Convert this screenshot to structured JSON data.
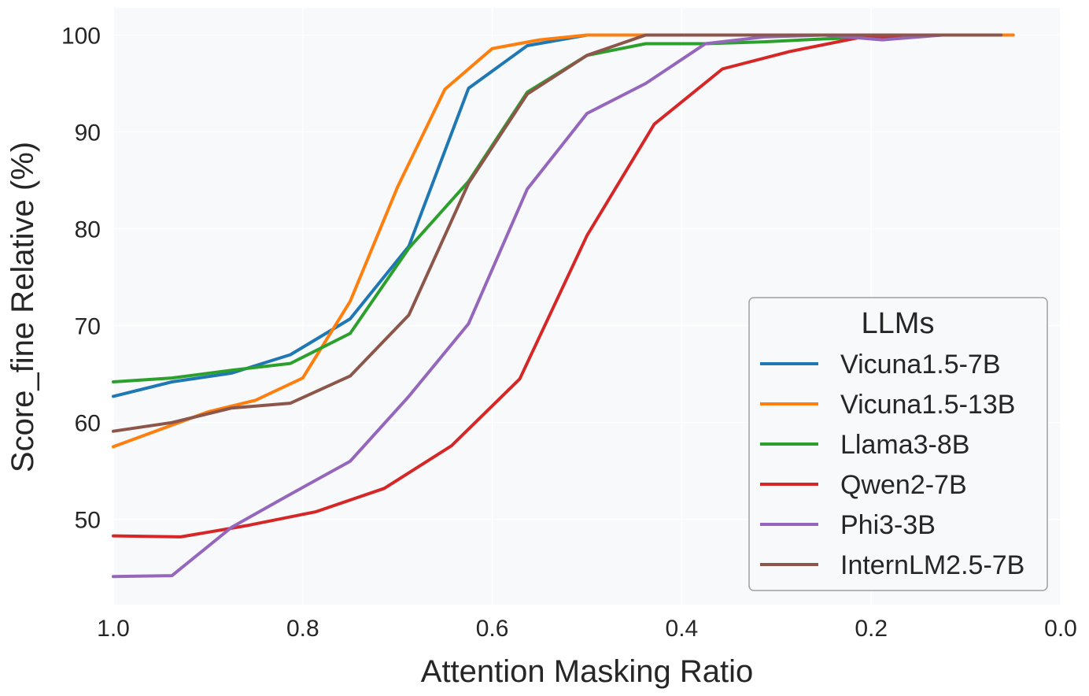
{
  "chart_data": {
    "type": "line",
    "xlabel": "Attention Masking Ratio",
    "ylabel": "Score_fine Relative (%)",
    "xlim": [
      1.0,
      0.0
    ],
    "ylim": [
      41.2,
      102.8
    ],
    "x_ticks": [
      1.0,
      0.8,
      0.6,
      0.4,
      0.2,
      0.0
    ],
    "x_tick_labels": [
      "1.0",
      "0.8",
      "0.6",
      "0.4",
      "0.2",
      "0.0"
    ],
    "y_ticks": [
      50,
      60,
      70,
      80,
      90,
      100
    ],
    "y_tick_labels": [
      "50",
      "60",
      "70",
      "80",
      "90",
      "100"
    ],
    "grid": true,
    "legend": {
      "title": "LLMs",
      "position": "lower-right"
    },
    "series": [
      {
        "name": "Vicuna1.5-7B",
        "color": "#1f77b4",
        "x": [
          1.0,
          0.938,
          0.875,
          0.813,
          0.75,
          0.688,
          0.625,
          0.563,
          0.5,
          0.438,
          0.375,
          0.313,
          0.25,
          0.188,
          0.125,
          0.063
        ],
        "y": [
          62.7,
          64.2,
          65.1,
          67.0,
          70.7,
          78.2,
          94.5,
          98.9,
          100.0,
          100.0,
          100.0,
          100.0,
          100.0,
          100.0,
          100.0,
          100.0
        ]
      },
      {
        "name": "Vicuna1.5-13B",
        "color": "#ff7f0e",
        "x": [
          1.0,
          0.95,
          0.9,
          0.85,
          0.8,
          0.75,
          0.7,
          0.65,
          0.6,
          0.55,
          0.5,
          0.45,
          0.4,
          0.35,
          0.3,
          0.25,
          0.2,
          0.15,
          0.1,
          0.05
        ],
        "y": [
          57.5,
          59.3,
          61.1,
          62.3,
          64.6,
          72.5,
          84.3,
          94.4,
          98.6,
          99.5,
          100.0,
          100.0,
          100.0,
          100.0,
          100.0,
          100.0,
          100.0,
          100.0,
          100.0,
          100.0
        ]
      },
      {
        "name": "Llama3-8B",
        "color": "#2ca02c",
        "x": [
          1.0,
          0.938,
          0.875,
          0.813,
          0.75,
          0.688,
          0.625,
          0.563,
          0.5,
          0.438,
          0.375,
          0.313,
          0.25,
          0.188,
          0.125,
          0.063
        ],
        "y": [
          64.2,
          64.6,
          65.4,
          66.1,
          69.2,
          78.0,
          84.9,
          94.1,
          97.9,
          99.1,
          99.1,
          99.3,
          99.6,
          99.8,
          100.0,
          100.0
        ]
      },
      {
        "name": "Qwen2-7B",
        "color": "#d62728",
        "x": [
          1.0,
          0.929,
          0.857,
          0.786,
          0.714,
          0.643,
          0.571,
          0.5,
          0.429,
          0.357,
          0.286,
          0.214,
          0.143,
          0.071
        ],
        "y": [
          48.3,
          48.2,
          49.4,
          50.8,
          53.2,
          57.6,
          64.5,
          79.3,
          90.8,
          96.5,
          98.3,
          99.7,
          100.0,
          100.0
        ]
      },
      {
        "name": "Phi3-3B",
        "color": "#9467bd",
        "x": [
          1.0,
          0.938,
          0.875,
          0.813,
          0.75,
          0.688,
          0.625,
          0.563,
          0.5,
          0.438,
          0.375,
          0.313,
          0.25,
          0.188,
          0.125,
          0.063
        ],
        "y": [
          44.1,
          44.2,
          49.2,
          52.6,
          56.0,
          62.7,
          70.2,
          84.1,
          91.9,
          95.0,
          99.1,
          99.8,
          100.0,
          99.5,
          100.0,
          100.0
        ]
      },
      {
        "name": "InternLM2.5-7B",
        "color": "#8c564b",
        "x": [
          1.0,
          0.938,
          0.875,
          0.813,
          0.75,
          0.688,
          0.625,
          0.563,
          0.5,
          0.438,
          0.375,
          0.313,
          0.25,
          0.188,
          0.125,
          0.063
        ],
        "y": [
          59.1,
          60.0,
          61.5,
          62.0,
          64.8,
          71.1,
          84.7,
          93.9,
          97.9,
          100.0,
          100.0,
          100.0,
          100.0,
          100.0,
          100.0,
          100.0
        ]
      }
    ]
  }
}
